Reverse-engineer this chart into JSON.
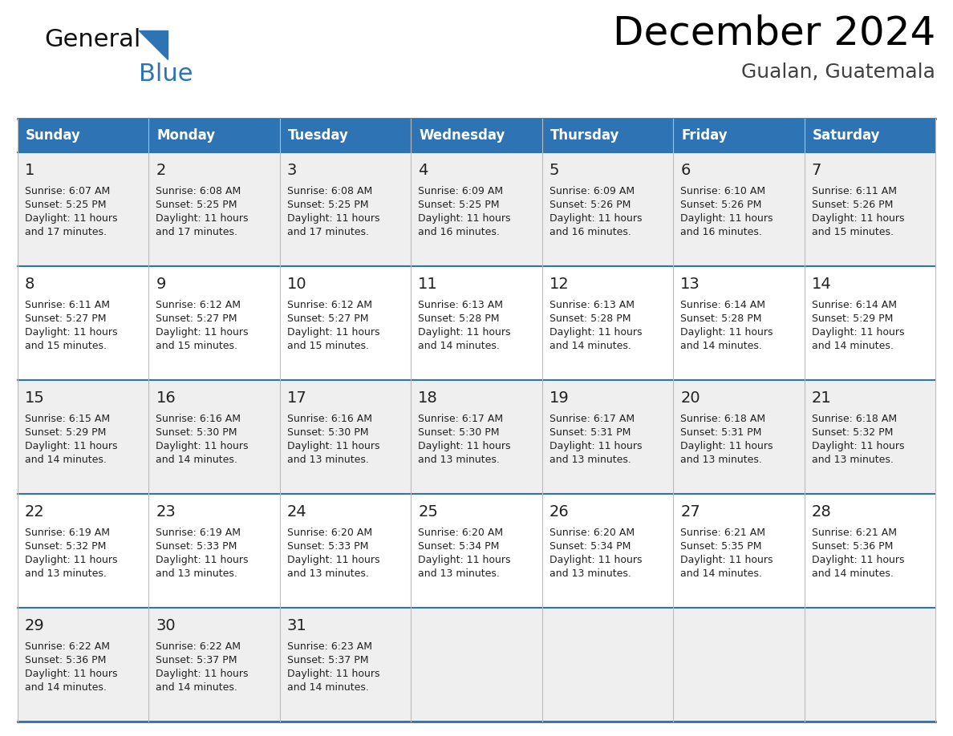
{
  "title": "December 2024",
  "subtitle": "Gualan, Guatemala",
  "header_color": "#2E74B5",
  "header_text_color": "#FFFFFF",
  "days_of_week": [
    "Sunday",
    "Monday",
    "Tuesday",
    "Wednesday",
    "Thursday",
    "Friday",
    "Saturday"
  ],
  "row_bg_colors": [
    "#EFEFEF",
    "#FFFFFF"
  ],
  "border_color": "#2E74B5",
  "day_number_color": "#222222",
  "text_color": "#222222",
  "calendar_data": [
    [
      {
        "day": "1",
        "sunrise": "6:07 AM",
        "sunset": "5:25 PM",
        "daylight_hours": "11 hours",
        "daylight_mins": "and 17 minutes."
      },
      {
        "day": "2",
        "sunrise": "6:08 AM",
        "sunset": "5:25 PM",
        "daylight_hours": "11 hours",
        "daylight_mins": "and 17 minutes."
      },
      {
        "day": "3",
        "sunrise": "6:08 AM",
        "sunset": "5:25 PM",
        "daylight_hours": "11 hours",
        "daylight_mins": "and 17 minutes."
      },
      {
        "day": "4",
        "sunrise": "6:09 AM",
        "sunset": "5:25 PM",
        "daylight_hours": "11 hours",
        "daylight_mins": "and 16 minutes."
      },
      {
        "day": "5",
        "sunrise": "6:09 AM",
        "sunset": "5:26 PM",
        "daylight_hours": "11 hours",
        "daylight_mins": "and 16 minutes."
      },
      {
        "day": "6",
        "sunrise": "6:10 AM",
        "sunset": "5:26 PM",
        "daylight_hours": "11 hours",
        "daylight_mins": "and 16 minutes."
      },
      {
        "day": "7",
        "sunrise": "6:11 AM",
        "sunset": "5:26 PM",
        "daylight_hours": "11 hours",
        "daylight_mins": "and 15 minutes."
      }
    ],
    [
      {
        "day": "8",
        "sunrise": "6:11 AM",
        "sunset": "5:27 PM",
        "daylight_hours": "11 hours",
        "daylight_mins": "and 15 minutes."
      },
      {
        "day": "9",
        "sunrise": "6:12 AM",
        "sunset": "5:27 PM",
        "daylight_hours": "11 hours",
        "daylight_mins": "and 15 minutes."
      },
      {
        "day": "10",
        "sunrise": "6:12 AM",
        "sunset": "5:27 PM",
        "daylight_hours": "11 hours",
        "daylight_mins": "and 15 minutes."
      },
      {
        "day": "11",
        "sunrise": "6:13 AM",
        "sunset": "5:28 PM",
        "daylight_hours": "11 hours",
        "daylight_mins": "and 14 minutes."
      },
      {
        "day": "12",
        "sunrise": "6:13 AM",
        "sunset": "5:28 PM",
        "daylight_hours": "11 hours",
        "daylight_mins": "and 14 minutes."
      },
      {
        "day": "13",
        "sunrise": "6:14 AM",
        "sunset": "5:28 PM",
        "daylight_hours": "11 hours",
        "daylight_mins": "and 14 minutes."
      },
      {
        "day": "14",
        "sunrise": "6:14 AM",
        "sunset": "5:29 PM",
        "daylight_hours": "11 hours",
        "daylight_mins": "and 14 minutes."
      }
    ],
    [
      {
        "day": "15",
        "sunrise": "6:15 AM",
        "sunset": "5:29 PM",
        "daylight_hours": "11 hours",
        "daylight_mins": "and 14 minutes."
      },
      {
        "day": "16",
        "sunrise": "6:16 AM",
        "sunset": "5:30 PM",
        "daylight_hours": "11 hours",
        "daylight_mins": "and 14 minutes."
      },
      {
        "day": "17",
        "sunrise": "6:16 AM",
        "sunset": "5:30 PM",
        "daylight_hours": "11 hours",
        "daylight_mins": "and 13 minutes."
      },
      {
        "day": "18",
        "sunrise": "6:17 AM",
        "sunset": "5:30 PM",
        "daylight_hours": "11 hours",
        "daylight_mins": "and 13 minutes."
      },
      {
        "day": "19",
        "sunrise": "6:17 AM",
        "sunset": "5:31 PM",
        "daylight_hours": "11 hours",
        "daylight_mins": "and 13 minutes."
      },
      {
        "day": "20",
        "sunrise": "6:18 AM",
        "sunset": "5:31 PM",
        "daylight_hours": "11 hours",
        "daylight_mins": "and 13 minutes."
      },
      {
        "day": "21",
        "sunrise": "6:18 AM",
        "sunset": "5:32 PM",
        "daylight_hours": "11 hours",
        "daylight_mins": "and 13 minutes."
      }
    ],
    [
      {
        "day": "22",
        "sunrise": "6:19 AM",
        "sunset": "5:32 PM",
        "daylight_hours": "11 hours",
        "daylight_mins": "and 13 minutes."
      },
      {
        "day": "23",
        "sunrise": "6:19 AM",
        "sunset": "5:33 PM",
        "daylight_hours": "11 hours",
        "daylight_mins": "and 13 minutes."
      },
      {
        "day": "24",
        "sunrise": "6:20 AM",
        "sunset": "5:33 PM",
        "daylight_hours": "11 hours",
        "daylight_mins": "and 13 minutes."
      },
      {
        "day": "25",
        "sunrise": "6:20 AM",
        "sunset": "5:34 PM",
        "daylight_hours": "11 hours",
        "daylight_mins": "and 13 minutes."
      },
      {
        "day": "26",
        "sunrise": "6:20 AM",
        "sunset": "5:34 PM",
        "daylight_hours": "11 hours",
        "daylight_mins": "and 13 minutes."
      },
      {
        "day": "27",
        "sunrise": "6:21 AM",
        "sunset": "5:35 PM",
        "daylight_hours": "11 hours",
        "daylight_mins": "and 14 minutes."
      },
      {
        "day": "28",
        "sunrise": "6:21 AM",
        "sunset": "5:36 PM",
        "daylight_hours": "11 hours",
        "daylight_mins": "and 14 minutes."
      }
    ],
    [
      {
        "day": "29",
        "sunrise": "6:22 AM",
        "sunset": "5:36 PM",
        "daylight_hours": "11 hours",
        "daylight_mins": "and 14 minutes."
      },
      {
        "day": "30",
        "sunrise": "6:22 AM",
        "sunset": "5:37 PM",
        "daylight_hours": "11 hours",
        "daylight_mins": "and 14 minutes."
      },
      {
        "day": "31",
        "sunrise": "6:23 AM",
        "sunset": "5:37 PM",
        "daylight_hours": "11 hours",
        "daylight_mins": "and 14 minutes."
      },
      null,
      null,
      null,
      null
    ]
  ],
  "logo_general_color": "#111111",
  "logo_blue_color": "#2E74B5",
  "logo_triangle_color": "#2E74B5",
  "title_fontsize": 36,
  "subtitle_fontsize": 18,
  "header_fontsize": 12,
  "day_num_fontsize": 14,
  "cell_text_fontsize": 9
}
